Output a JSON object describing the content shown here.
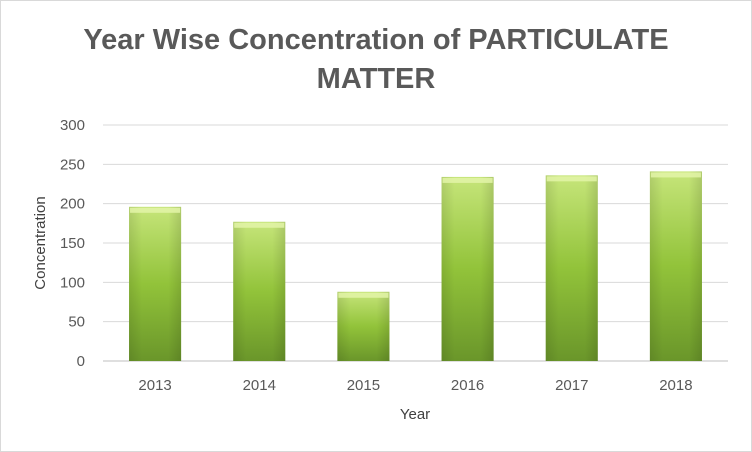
{
  "chart_data": {
    "type": "bar",
    "title_lines": [
      "Year Wise Concentration of PARTICULATE",
      "MATTER"
    ],
    "xlabel": "Year",
    "ylabel": "Concentration",
    "categories": [
      "2013",
      "2014",
      "2015",
      "2016",
      "2017",
      "2018"
    ],
    "values": [
      196,
      177,
      88,
      234,
      236,
      241
    ],
    "ylim": [
      0,
      300
    ],
    "yticks": [
      "0",
      "50",
      "100",
      "150",
      "200",
      "250",
      "300"
    ],
    "grid": true,
    "legend": "none",
    "bar_color": "#92c33a",
    "bar_color_light": "#c6e57a",
    "bar_color_dark": "#6a962a"
  }
}
